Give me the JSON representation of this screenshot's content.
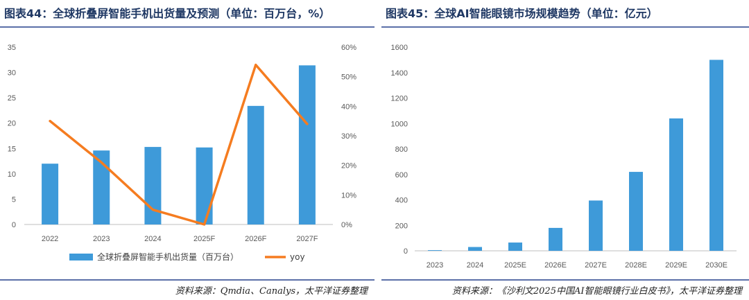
{
  "colors": {
    "bar": "#3e9ad9",
    "line": "#f57c20",
    "title": "#1f3864",
    "axis": "#bfbfbf"
  },
  "left": {
    "title": "图表44：全球折叠屏智能手机出货量及预测（单位：百万台，%）",
    "source": "资料来源：Qmdia、Canalys，太平洋证券整理",
    "legend": {
      "bar_label": "全球折叠屏智能手机出货量（百万台）",
      "line_label": "yoy"
    }
  },
  "right": {
    "title": "图表45：全球AI智能眼镜市场规模趋势（单位：亿元）",
    "source": "资料来源：《沙利文2025中国AI智能眼镜行业白皮书》，太平洋证券整理"
  },
  "chart_data": [
    {
      "type": "bar",
      "title": "全球折叠屏智能手机出货量及预测（单位：百万台，%）",
      "categories": [
        "2022",
        "2023",
        "2024",
        "2025F",
        "2026F",
        "2027F"
      ],
      "series": [
        {
          "name": "全球折叠屏智能手机出货量（百万台）",
          "type": "bar",
          "axis": "left",
          "values": [
            12.0,
            14.6,
            15.3,
            15.2,
            23.4,
            31.4
          ]
        },
        {
          "name": "yoy",
          "type": "line",
          "axis": "right",
          "values": [
            35,
            21,
            5,
            0,
            54,
            34
          ]
        }
      ],
      "yticks_left": [
        0,
        5,
        10,
        15,
        20,
        25,
        30,
        35
      ],
      "ylim_left": [
        0,
        35
      ],
      "yticks_right": [
        "0%",
        "10%",
        "20%",
        "30%",
        "40%",
        "50%",
        "60%"
      ],
      "ylim_right": [
        0,
        60
      ]
    },
    {
      "type": "bar",
      "title": "全球AI智能眼镜市场规模趋势（单位：亿元）",
      "categories": [
        "2023",
        "2024",
        "2025E",
        "2026E",
        "2027E",
        "2028E",
        "2029E",
        "2030E"
      ],
      "values": [
        5,
        30,
        65,
        180,
        395,
        620,
        1040,
        1500
      ],
      "yticks": [
        0,
        200,
        400,
        600,
        800,
        1000,
        1200,
        1400,
        1600
      ],
      "ylim": [
        0,
        1600
      ]
    }
  ]
}
